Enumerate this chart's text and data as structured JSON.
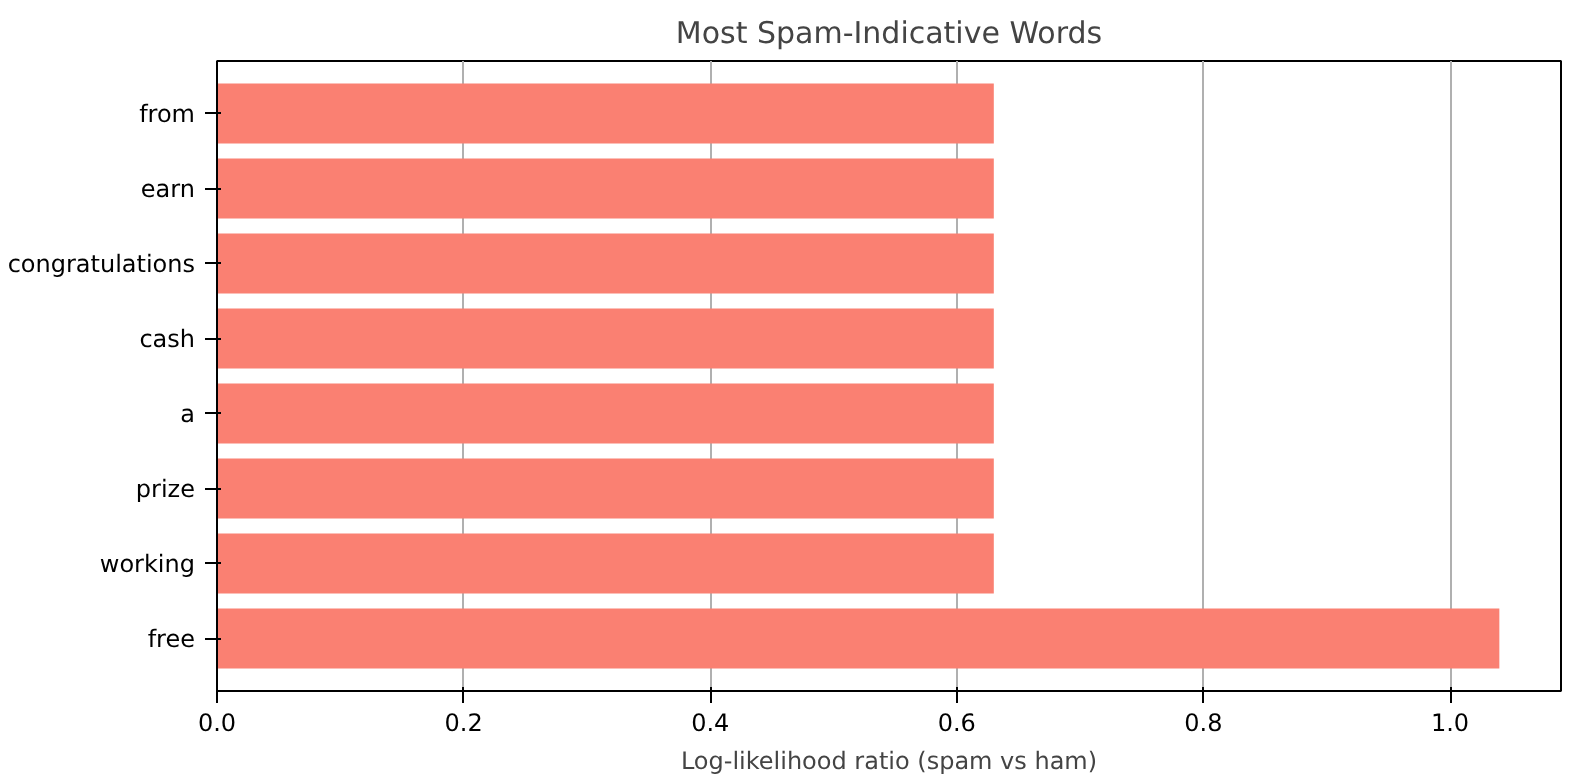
{
  "chart_data": {
    "type": "bar",
    "orientation": "horizontal",
    "title": "Most Spam-Indicative Words",
    "xlabel": "Log-likelihood ratio (spam vs ham)",
    "categories": [
      "from",
      "earn",
      "congratulations",
      "cash",
      "a",
      "prize",
      "working",
      "free"
    ],
    "values": [
      0.63,
      0.63,
      0.63,
      0.63,
      0.63,
      0.63,
      0.63,
      1.04
    ],
    "color": "#fa8072",
    "xlim": [
      0,
      1.09
    ],
    "xticks": [
      {
        "value": 0,
        "label": "0.0"
      },
      {
        "value": 0.2,
        "label": "0.2"
      },
      {
        "value": 0.4,
        "label": "0.4"
      },
      {
        "value": 0.6,
        "label": "0.6"
      },
      {
        "value": 0.8,
        "label": "0.8"
      },
      {
        "value": 1.0,
        "label": "1.0"
      }
    ],
    "grid": "x"
  }
}
